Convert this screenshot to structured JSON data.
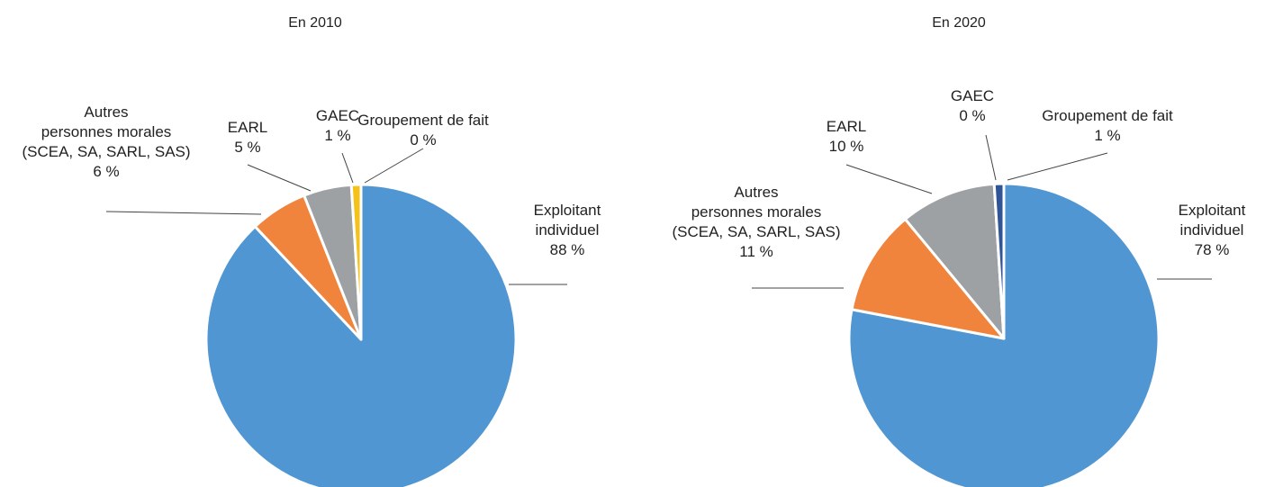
{
  "chart_data": [
    {
      "type": "pie",
      "title": "En 2010",
      "categories": [
        "Exploitant\nindividuel",
        "Autres\npersonnes morales\n(SCEA, SA, SARL, SAS)",
        "EARL",
        "GAEC",
        "Groupement de fait"
      ],
      "values": [
        88,
        6,
        5,
        1,
        0
      ],
      "value_labels": [
        "88 %",
        "6 %",
        "5 %",
        "1 %",
        "0 %"
      ],
      "colors": [
        "#5096d2",
        "#f0843c",
        "#9da1a3",
        "#f5c21b",
        "#2f5597"
      ]
    },
    {
      "type": "pie",
      "title": "En 2020",
      "categories": [
        "Exploitant\nindividuel",
        "Autres\npersonnes morales\n(SCEA, SA, SARL, SAS)",
        "EARL",
        "GAEC",
        "Groupement de fait"
      ],
      "values": [
        78,
        11,
        10,
        0,
        1
      ],
      "value_labels": [
        "78 %",
        "11 %",
        "10 %",
        "0 %",
        "1 %"
      ],
      "colors": [
        "#5096d2",
        "#f0843c",
        "#9da1a3",
        "#f5c21b",
        "#2f5597"
      ]
    }
  ]
}
